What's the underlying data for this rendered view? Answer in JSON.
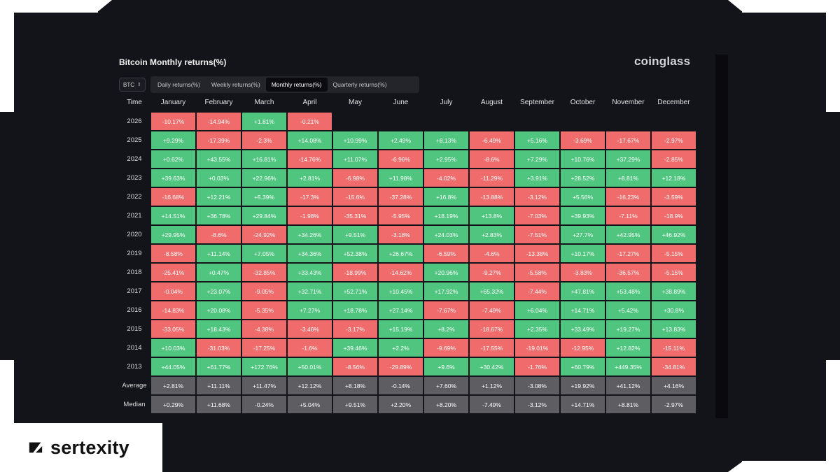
{
  "title": "Bitcoin Monthly returns(%)",
  "logo": "coinglass",
  "brand": "sertexity",
  "coin_select": {
    "value": "BTC"
  },
  "tabs": [
    {
      "label": "Daily returns(%)",
      "active": false
    },
    {
      "label": "Weekly returns(%)",
      "active": false
    },
    {
      "label": "Monthly returns(%)",
      "active": true
    },
    {
      "label": "Quarterly returns(%)",
      "active": false
    }
  ],
  "colors": {
    "positive": "#4fc57f",
    "negative": "#f06c6c",
    "stat": "#5e5e62",
    "background": "#13131a"
  },
  "table": {
    "columns": [
      "Time",
      "January",
      "February",
      "March",
      "April",
      "May",
      "June",
      "July",
      "August",
      "September",
      "October",
      "November",
      "December"
    ],
    "rows": [
      {
        "label": "2026",
        "values": [
          "-10.17%",
          "-14.94%",
          "+1.81%",
          "-0.21%",
          "",
          "",
          "",
          "",
          "",
          "",
          "",
          ""
        ]
      },
      {
        "label": "2025",
        "values": [
          "+9.29%",
          "-17.39%",
          "-2.3%",
          "+14.08%",
          "+10.99%",
          "+2.49%",
          "+8.13%",
          "-6.49%",
          "+5.16%",
          "-3.69%",
          "-17.67%",
          "-2.97%"
        ]
      },
      {
        "label": "2024",
        "values": [
          "+0.62%",
          "+43.55%",
          "+16.81%",
          "-14.76%",
          "+11.07%",
          "-6.96%",
          "+2.95%",
          "-8.6%",
          "+7.29%",
          "+10.76%",
          "+37.29%",
          "-2.85%"
        ]
      },
      {
        "label": "2023",
        "values": [
          "+39.63%",
          "+0.03%",
          "+22.96%",
          "+2.81%",
          "-6.98%",
          "+11.98%",
          "-4.02%",
          "-11.29%",
          "+3.91%",
          "+28.52%",
          "+8.81%",
          "+12.18%"
        ]
      },
      {
        "label": "2022",
        "values": [
          "-16.68%",
          "+12.21%",
          "+5.39%",
          "-17.3%",
          "-15.6%",
          "-37.28%",
          "+16.8%",
          "-13.88%",
          "-3.12%",
          "+5.56%",
          "-16.23%",
          "-3.59%"
        ]
      },
      {
        "label": "2021",
        "values": [
          "+14.51%",
          "+36.78%",
          "+29.84%",
          "-1.98%",
          "-35.31%",
          "-5.95%",
          "+18.19%",
          "+13.8%",
          "-7.03%",
          "+39.93%",
          "-7.11%",
          "-18.9%"
        ]
      },
      {
        "label": "2020",
        "values": [
          "+29.95%",
          "-8.6%",
          "-24.92%",
          "+34.26%",
          "+9.51%",
          "-3.18%",
          "+24.03%",
          "+2.83%",
          "-7.51%",
          "+27.7%",
          "+42.95%",
          "+46.92%"
        ]
      },
      {
        "label": "2019",
        "values": [
          "-8.58%",
          "+11.14%",
          "+7.05%",
          "+34.36%",
          "+52.38%",
          "+26.67%",
          "-6.59%",
          "-4.6%",
          "-13.38%",
          "+10.17%",
          "-17.27%",
          "-5.15%"
        ]
      },
      {
        "label": "2018",
        "values": [
          "-25.41%",
          "+0.47%",
          "-32.85%",
          "+33.43%",
          "-18.99%",
          "-14.62%",
          "+20.96%",
          "-9.27%",
          "-5.58%",
          "-3.83%",
          "-36.57%",
          "-5.15%"
        ]
      },
      {
        "label": "2017",
        "values": [
          "-0.04%",
          "+23.07%",
          "-9.05%",
          "+32.71%",
          "+52.71%",
          "+10.45%",
          "+17.92%",
          "+65.32%",
          "-7.44%",
          "+47.81%",
          "+53.48%",
          "+38.89%"
        ]
      },
      {
        "label": "2016",
        "values": [
          "-14.83%",
          "+20.08%",
          "-5.35%",
          "+7.27%",
          "+18.78%",
          "+27.14%",
          "-7.67%",
          "-7.49%",
          "+6.04%",
          "+14.71%",
          "+5.42%",
          "+30.8%"
        ]
      },
      {
        "label": "2015",
        "values": [
          "-33.05%",
          "+18.43%",
          "-4.38%",
          "-3.46%",
          "-3.17%",
          "+15.19%",
          "+8.2%",
          "-18.67%",
          "+2.35%",
          "+33.49%",
          "+19.27%",
          "+13.83%"
        ]
      },
      {
        "label": "2014",
        "values": [
          "+10.03%",
          "-31.03%",
          "-17.25%",
          "-1.6%",
          "+39.46%",
          "+2.2%",
          "-9.69%",
          "-17.55%",
          "-19.01%",
          "-12.95%",
          "+12.82%",
          "-15.11%"
        ]
      },
      {
        "label": "2013",
        "values": [
          "+44.05%",
          "+61.77%",
          "+172.76%",
          "+50.01%",
          "-8.56%",
          "-29.89%",
          "+9.6%",
          "+30.42%",
          "-1.76%",
          "+60.79%",
          "+449.35%",
          "-34.81%"
        ]
      },
      {
        "label": "Average",
        "stat": true,
        "values": [
          "+2.81%",
          "+11.11%",
          "+11.47%",
          "+12.12%",
          "+8.18%",
          "-0.14%",
          "+7.60%",
          "+1.12%",
          "-3.08%",
          "+19.92%",
          "+41.12%",
          "+4.16%"
        ]
      },
      {
        "label": "Median",
        "stat": true,
        "values": [
          "+0.29%",
          "+11.68%",
          "-0.24%",
          "+5.04%",
          "+9.51%",
          "+2.20%",
          "+8.20%",
          "-7.49%",
          "-3.12%",
          "+14.71%",
          "+8.81%",
          "-2.97%"
        ]
      }
    ]
  }
}
